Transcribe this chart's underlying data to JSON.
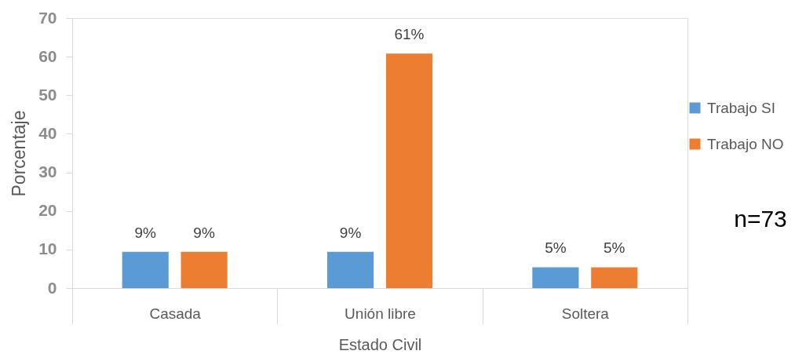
{
  "chart_data": {
    "type": "bar",
    "xlabel": "Estado Civil",
    "ylabel": "Porcentaje",
    "categories": [
      "Casada",
      "Unión libre",
      "Soltera"
    ],
    "series": [
      {
        "name": "Trabajo SI",
        "color": "#5b9bd5",
        "values": [
          9.4,
          9.4,
          5.4
        ],
        "value_labels": [
          "9%",
          "9%",
          "5%"
        ]
      },
      {
        "name": "Trabajo NO",
        "color": "#ed7d31",
        "values": [
          9.4,
          60.8,
          5.4
        ],
        "value_labels": [
          "9%",
          "61%",
          "5%"
        ]
      }
    ],
    "ylim": [
      0,
      70
    ],
    "yticks": [
      0,
      10,
      20,
      30,
      40,
      50,
      60,
      70
    ],
    "grid": false,
    "legend": "right",
    "annotations": [
      "n=73"
    ]
  }
}
